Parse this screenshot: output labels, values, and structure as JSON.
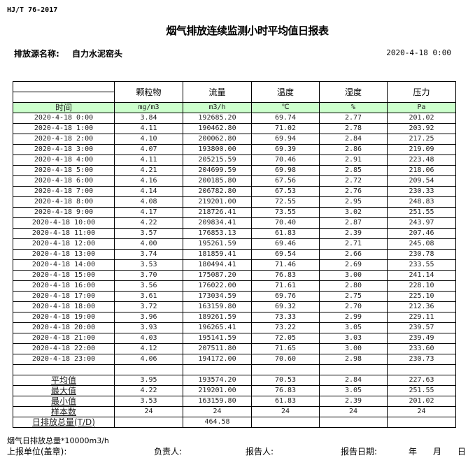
{
  "standard": "HJ/T  76-2017",
  "title": "烟气排放连续监测小时平均值日报表",
  "source_label": "排放源名称:",
  "source_name": "自力水泥窑头",
  "report_datetime": "2020-4-18 0:00",
  "table": {
    "headers": [
      "",
      "颗粒物",
      "流量",
      "温度",
      "湿度",
      "压力"
    ],
    "units": [
      "时间",
      "mg/m3",
      "m3/h",
      "℃",
      "%",
      "Pa"
    ],
    "unit_row_color": "#ccffcc",
    "rows": [
      [
        "2020-4-18 0:00",
        "3.84",
        "192685.20",
        "69.74",
        "2.77",
        "201.02"
      ],
      [
        "2020-4-18 1:00",
        "4.11",
        "190462.80",
        "71.02",
        "2.78",
        "203.92"
      ],
      [
        "2020-4-18 2:00",
        "4.10",
        "200062.80",
        "69.94",
        "2.84",
        "217.25"
      ],
      [
        "2020-4-18 3:00",
        "4.07",
        "193800.00",
        "69.39",
        "2.86",
        "219.09"
      ],
      [
        "2020-4-18 4:00",
        "4.11",
        "205215.59",
        "70.46",
        "2.91",
        "223.48"
      ],
      [
        "2020-4-18 5:00",
        "4.21",
        "204699.59",
        "69.98",
        "2.85",
        "218.06"
      ],
      [
        "2020-4-18 6:00",
        "4.16",
        "200185.80",
        "67.56",
        "2.72",
        "209.54"
      ],
      [
        "2020-4-18 7:00",
        "4.14",
        "206782.80",
        "67.53",
        "2.76",
        "230.33"
      ],
      [
        "2020-4-18 8:00",
        "4.08",
        "219201.00",
        "72.55",
        "2.95",
        "248.83"
      ],
      [
        "2020-4-18 9:00",
        "4.17",
        "218726.41",
        "73.55",
        "3.02",
        "251.55"
      ],
      [
        "2020-4-18 10:00",
        "4.22",
        "209834.41",
        "70.40",
        "2.87",
        "243.97"
      ],
      [
        "2020-4-18 11:00",
        "3.57",
        "176853.13",
        "61.83",
        "2.39",
        "207.46"
      ],
      [
        "2020-4-18 12:00",
        "4.00",
        "195261.59",
        "69.46",
        "2.71",
        "245.08"
      ],
      [
        "2020-4-18 13:00",
        "3.74",
        "181859.41",
        "69.54",
        "2.66",
        "230.78"
      ],
      [
        "2020-4-18 14:00",
        "3.53",
        "180494.41",
        "71.46",
        "2.69",
        "233.55"
      ],
      [
        "2020-4-18 15:00",
        "3.70",
        "175087.20",
        "76.83",
        "3.00",
        "241.14"
      ],
      [
        "2020-4-18 16:00",
        "3.56",
        "176022.00",
        "71.61",
        "2.80",
        "228.10"
      ],
      [
        "2020-4-18 17:00",
        "3.61",
        "173034.59",
        "69.76",
        "2.75",
        "225.10"
      ],
      [
        "2020-4-18 18:00",
        "3.72",
        "163159.80",
        "69.32",
        "2.70",
        "212.36"
      ],
      [
        "2020-4-18 19:00",
        "3.96",
        "189261.59",
        "73.33",
        "2.99",
        "229.11"
      ],
      [
        "2020-4-18 20:00",
        "3.93",
        "196265.41",
        "73.22",
        "3.05",
        "239.57"
      ],
      [
        "2020-4-18 21:00",
        "4.03",
        "195141.59",
        "72.05",
        "3.03",
        "239.49"
      ],
      [
        "2020-4-18 22:00",
        "4.12",
        "207511.80",
        "71.65",
        "3.00",
        "233.60"
      ],
      [
        "2020-4-18 23:00",
        "4.06",
        "194172.00",
        "70.60",
        "2.98",
        "230.73"
      ]
    ],
    "summary": [
      [
        "平均值",
        "3.95",
        "193574.20",
        "70.53",
        "2.84",
        "227.63"
      ],
      [
        "最大值",
        "4.22",
        "219201.00",
        "76.83",
        "3.05",
        "251.55"
      ],
      [
        "最小值",
        "3.53",
        "163159.80",
        "61.83",
        "2.39",
        "201.02"
      ],
      [
        "样本数",
        "24",
        "24",
        "24",
        "24",
        "24"
      ],
      [
        "日排放总量(T/D)",
        "",
        "464.58",
        "",
        "",
        ""
      ]
    ]
  },
  "footer": {
    "note": "烟气日排放总量*10000m3/h",
    "unit_label": "上报单位(盖章):",
    "responsible_label": "负责人:",
    "reporter_label": "报告人:",
    "date_label": "报告日期:",
    "year": "年",
    "month": "月",
    "day": "日"
  }
}
